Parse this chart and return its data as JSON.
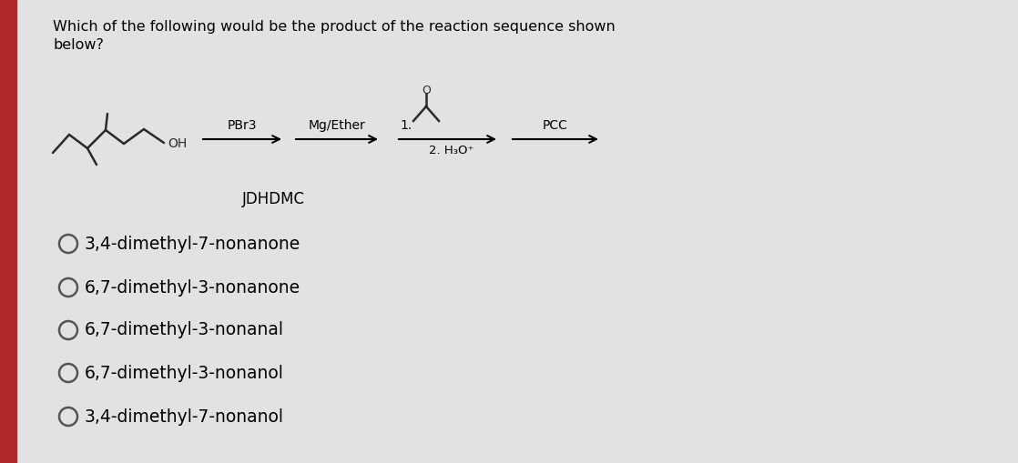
{
  "background_color": "#cbcbcb",
  "left_bar_color": "#b0292a",
  "content_bg": "#e2e2e2",
  "title_line1": "Which of the following would be the product of the reaction sequence shown",
  "title_line2": "below?",
  "reagent1": "PBr3",
  "reagent2": "Mg/Ether",
  "reagent3_line1": "1.",
  "reagent3_line2": "2. H₃O⁺",
  "reagent4": "PCC",
  "label": "JDHDMC",
  "options": [
    "3,4-dimethyl-7-nonanone",
    "6,7-dimethyl-3-nonanone",
    "6,7-dimethyl-3-nonanal",
    "6,7-dimethyl-3-nonanol",
    "3,4-dimethyl-7-nonanol"
  ],
  "title_fontsize": 11.5,
  "option_fontsize": 13.5,
  "label_fontsize": 12,
  "reagent_fontsize": 10,
  "mol_color": "#2a2a2a"
}
